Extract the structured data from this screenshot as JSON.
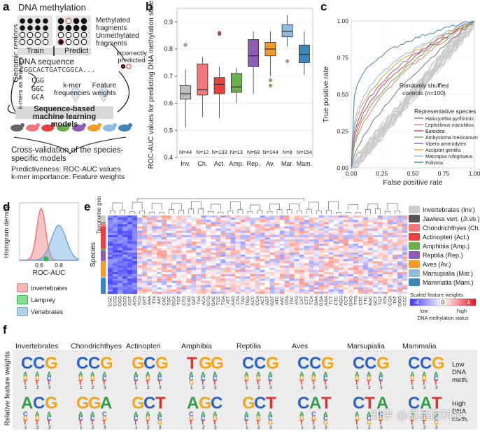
{
  "panel_letters": {
    "a": "a",
    "b": "b",
    "c": "c",
    "d": "d",
    "e": "e",
    "f": "f"
  },
  "panel_a": {
    "title": "DNA methylation",
    "genomic_regions": "Genomic regions",
    "methylated": "Methylated fragments",
    "unmethylated": "Unmethylated fragments",
    "train": "Train",
    "predict": "Predict",
    "incorrectly": "Incorrectly predicted:",
    "dna_sequence": "DNA sequence",
    "sequence": "CGGCACTGATCGGCA...",
    "kmers_as_features": "k-mers as features",
    "kmers": [
      "CGG",
      "GGC",
      "GCA"
    ],
    "kmer_freq": "k-mer frequencies",
    "feature_weights": "Feature weights",
    "model_box": "Sequence-based machine learning models",
    "cv_title": "Cross-validation of the species-specific models",
    "predictiveness": "Predictiveness: ROC-AUC values",
    "importance": "k-mer importance: Feature weights"
  },
  "chart_data": [
    {
      "id": "b",
      "type": "box",
      "ylabel": "ROC-AUC values for predicting DNA methylation states",
      "ylim": [
        0.4,
        0.95
      ],
      "yticks": [
        0.4,
        0.5,
        0.6,
        0.7,
        0.8,
        0.9
      ],
      "categories": [
        "Inv.",
        "Ch.",
        "Act.",
        "Amp.",
        "Rep.",
        "Av.",
        "Mar.",
        "Mam."
      ],
      "n_labels": [
        "N=44",
        "N=12",
        "N=133",
        "N=13",
        "N=69",
        "N=144",
        "N=8",
        "N=154"
      ],
      "colors": [
        "#bdbdbd",
        "#f2797b",
        "#e8423f",
        "#6ab04c",
        "#8e5cb5",
        "#f39c2d",
        "#8fbcdc",
        "#3d86b8"
      ],
      "boxes": [
        {
          "min": 0.51,
          "q1": 0.615,
          "median": 0.635,
          "q3": 0.665,
          "max": 0.725,
          "outliers": [
            0.815
          ]
        },
        {
          "min": 0.55,
          "q1": 0.63,
          "median": 0.65,
          "q3": 0.745,
          "max": 0.77,
          "outliers": []
        },
        {
          "min": 0.545,
          "q1": 0.635,
          "median": 0.67,
          "q3": 0.695,
          "max": 0.735,
          "outliers": [
            0.855,
            0.86
          ]
        },
        {
          "min": 0.6,
          "q1": 0.64,
          "median": 0.66,
          "q3": 0.71,
          "max": 0.73,
          "outliers": []
        },
        {
          "min": 0.635,
          "q1": 0.735,
          "median": 0.775,
          "q3": 0.835,
          "max": 0.865,
          "outliers": []
        },
        {
          "min": 0.7,
          "q1": 0.775,
          "median": 0.8,
          "q3": 0.825,
          "max": 0.865,
          "outliers": [
            0.665,
            0.685
          ]
        },
        {
          "min": 0.81,
          "q1": 0.845,
          "median": 0.865,
          "q3": 0.89,
          "max": 0.925,
          "outliers": [
            0.755
          ]
        },
        {
          "min": 0.705,
          "q1": 0.75,
          "median": 0.78,
          "q3": 0.815,
          "max": 0.865,
          "outliers": []
        }
      ]
    },
    {
      "id": "c",
      "type": "line",
      "title": "",
      "xlabel": "False positive rate",
      "ylabel": "True positive rate",
      "xlim": [
        0,
        1
      ],
      "ylim": [
        0,
        1
      ],
      "xticks": [
        "0.00",
        "0.25",
        "0.50",
        "0.75",
        "1.00"
      ],
      "yticks": [
        "0.00",
        "0.25",
        "0.50",
        "0.75",
        "1.00"
      ],
      "annotation": "Randomly shuffled controls (n=100)",
      "legend_title": "Representative species",
      "series": [
        {
          "name": "Halocynthia pyriformis",
          "color": "#777777",
          "auc": 0.6
        },
        {
          "name": "Leptoclinus maculatus",
          "color": "#f2797b",
          "auc": 0.66
        },
        {
          "name": "Batoidea",
          "color": "#e8423f",
          "auc": 0.7
        },
        {
          "name": "Ambystoma mexicanum",
          "color": "#6ab04c",
          "auc": 0.68
        },
        {
          "name": "Vipera ammodytes",
          "color": "#8e5cb5",
          "auc": 0.72
        },
        {
          "name": "Accipiter gentilis",
          "color": "#f39c2d",
          "auc": 0.74
        },
        {
          "name": "Macropus rufogriseus",
          "color": "#8fbcdc",
          "auc": 0.76
        },
        {
          "name": "Folivora",
          "color": "#3d86b8",
          "auc": 0.84
        }
      ]
    },
    {
      "id": "d",
      "type": "area",
      "title": "",
      "xlabel": "ROC-AUC",
      "ylabel": "Histogram density",
      "xlim": [
        0.4,
        1.0
      ],
      "xticks": [
        "0.6",
        "0.8"
      ],
      "series": [
        {
          "name": "Invertebrates",
          "color": "#f2797b",
          "peak_x": 0.62
        },
        {
          "name": "Vertebrates",
          "color": "#6fa8dc",
          "peak_x": 0.8
        }
      ],
      "point": {
        "name": "Lamprey",
        "color": "#2bbd3f",
        "x": 0.67
      }
    },
    {
      "id": "e",
      "type": "heatmap",
      "row_label_top": "Taxonomic group",
      "row_label_side": "Species",
      "color_scale_title": "Scaled feature weights",
      "color_scale_ticks": [
        "-4",
        "0",
        "4"
      ],
      "color_scale_low": "low",
      "color_scale_high": "high",
      "color_scale_caption": "DNA methylation status",
      "column_labels": [
        "CGC",
        "CCG",
        "CGG",
        "GCG",
        "CGT",
        "ACG",
        "TCG",
        "GTT",
        "AAA",
        "TTA",
        "AAT",
        "CAC",
        "TGC",
        "GCA",
        "TGT",
        "CTG",
        "CAG",
        "GAT",
        "TAA",
        "ACA",
        "GTG",
        "GAC",
        "TCC",
        "TGA",
        "ATT",
        "AAG",
        "CTA",
        "TAG",
        "TGG",
        "ACC",
        "CCA",
        "ACT",
        "AGT",
        "GGT",
        "ATC",
        "AAC",
        "GTA",
        "TAC",
        "ATG",
        "CAT",
        "CTT",
        "TCA",
        "GAA",
        "GGA",
        "AGA",
        "TCT",
        "CTC",
        "AGG",
        "CCT",
        "GAG",
        "TTG",
        "CTC",
        "TTC",
        "AGC",
        "GCT",
        "TGT",
        "ATA",
        "CGA",
        "TAT",
        "GGG",
        "CCC"
      ]
    }
  ],
  "panel_d_legend": [
    {
      "label": "Invertebrates",
      "color": "#f2797b"
    },
    {
      "label": "Lamprey",
      "color": "#2bbd3f"
    },
    {
      "label": "Vertebrates",
      "color": "#6fa8dc"
    }
  ],
  "panel_e_legend": [
    {
      "label": "Invertebrates (Inv.)",
      "color": "#cccccc"
    },
    {
      "label": "Jawless vert. (Jl.vb.)",
      "color": "#555555"
    },
    {
      "label": "Chondrichthyes (Ch.)",
      "color": "#f2797b"
    },
    {
      "label": "Actinopteri (Act.)",
      "color": "#e8423f"
    },
    {
      "label": "Amphibia (Amp.)",
      "color": "#6ab04c"
    },
    {
      "label": "Reptilia (Rep.)",
      "color": "#8e5cb5"
    },
    {
      "label": "Aves (Av.)",
      "color": "#f39c2d"
    },
    {
      "label": "Marsupialia (Mar.)",
      "color": "#8fbcdc"
    },
    {
      "label": "Mammalia (Mam.)",
      "color": "#3d86b8"
    }
  ],
  "panel_f": {
    "ylabel": "Relative feature weights",
    "row_low": "Low DNA meth.",
    "row_high": "High DNA meth.",
    "position_ticks": [
      "1",
      "2",
      "3"
    ],
    "groups": [
      {
        "name": "Invertebrates",
        "low": [
          "C",
          "C",
          "G"
        ],
        "high": [
          "A",
          "C",
          "G"
        ]
      },
      {
        "name": "Chondrichthyes",
        "low": [
          "C",
          "C",
          "G"
        ],
        "high": [
          "G",
          "G",
          "A"
        ]
      },
      {
        "name": "Actinopteri",
        "low": [
          "G",
          "C",
          "G"
        ],
        "high": [
          "G",
          "C",
          "T"
        ]
      },
      {
        "name": "Amphibia",
        "low": [
          "T",
          "G",
          "G"
        ],
        "high": [
          "A",
          "G",
          "C"
        ]
      },
      {
        "name": "Reptilia",
        "low": [
          "C",
          "C",
          "G"
        ],
        "high": [
          "G",
          "C",
          "T"
        ]
      },
      {
        "name": "Aves",
        "low": [
          "C",
          "C",
          "G"
        ],
        "high": [
          "C",
          "A",
          "T"
        ]
      },
      {
        "name": "Marsupialia",
        "low": [
          "C",
          "C",
          "G"
        ],
        "high": [
          "C",
          "T",
          "A"
        ]
      },
      {
        "name": "Mammalia",
        "low": [
          "C",
          "C",
          "G"
        ],
        "high": [
          "C",
          "A",
          "T"
        ]
      }
    ]
  },
  "watermark": "知乎 @易基因科技"
}
